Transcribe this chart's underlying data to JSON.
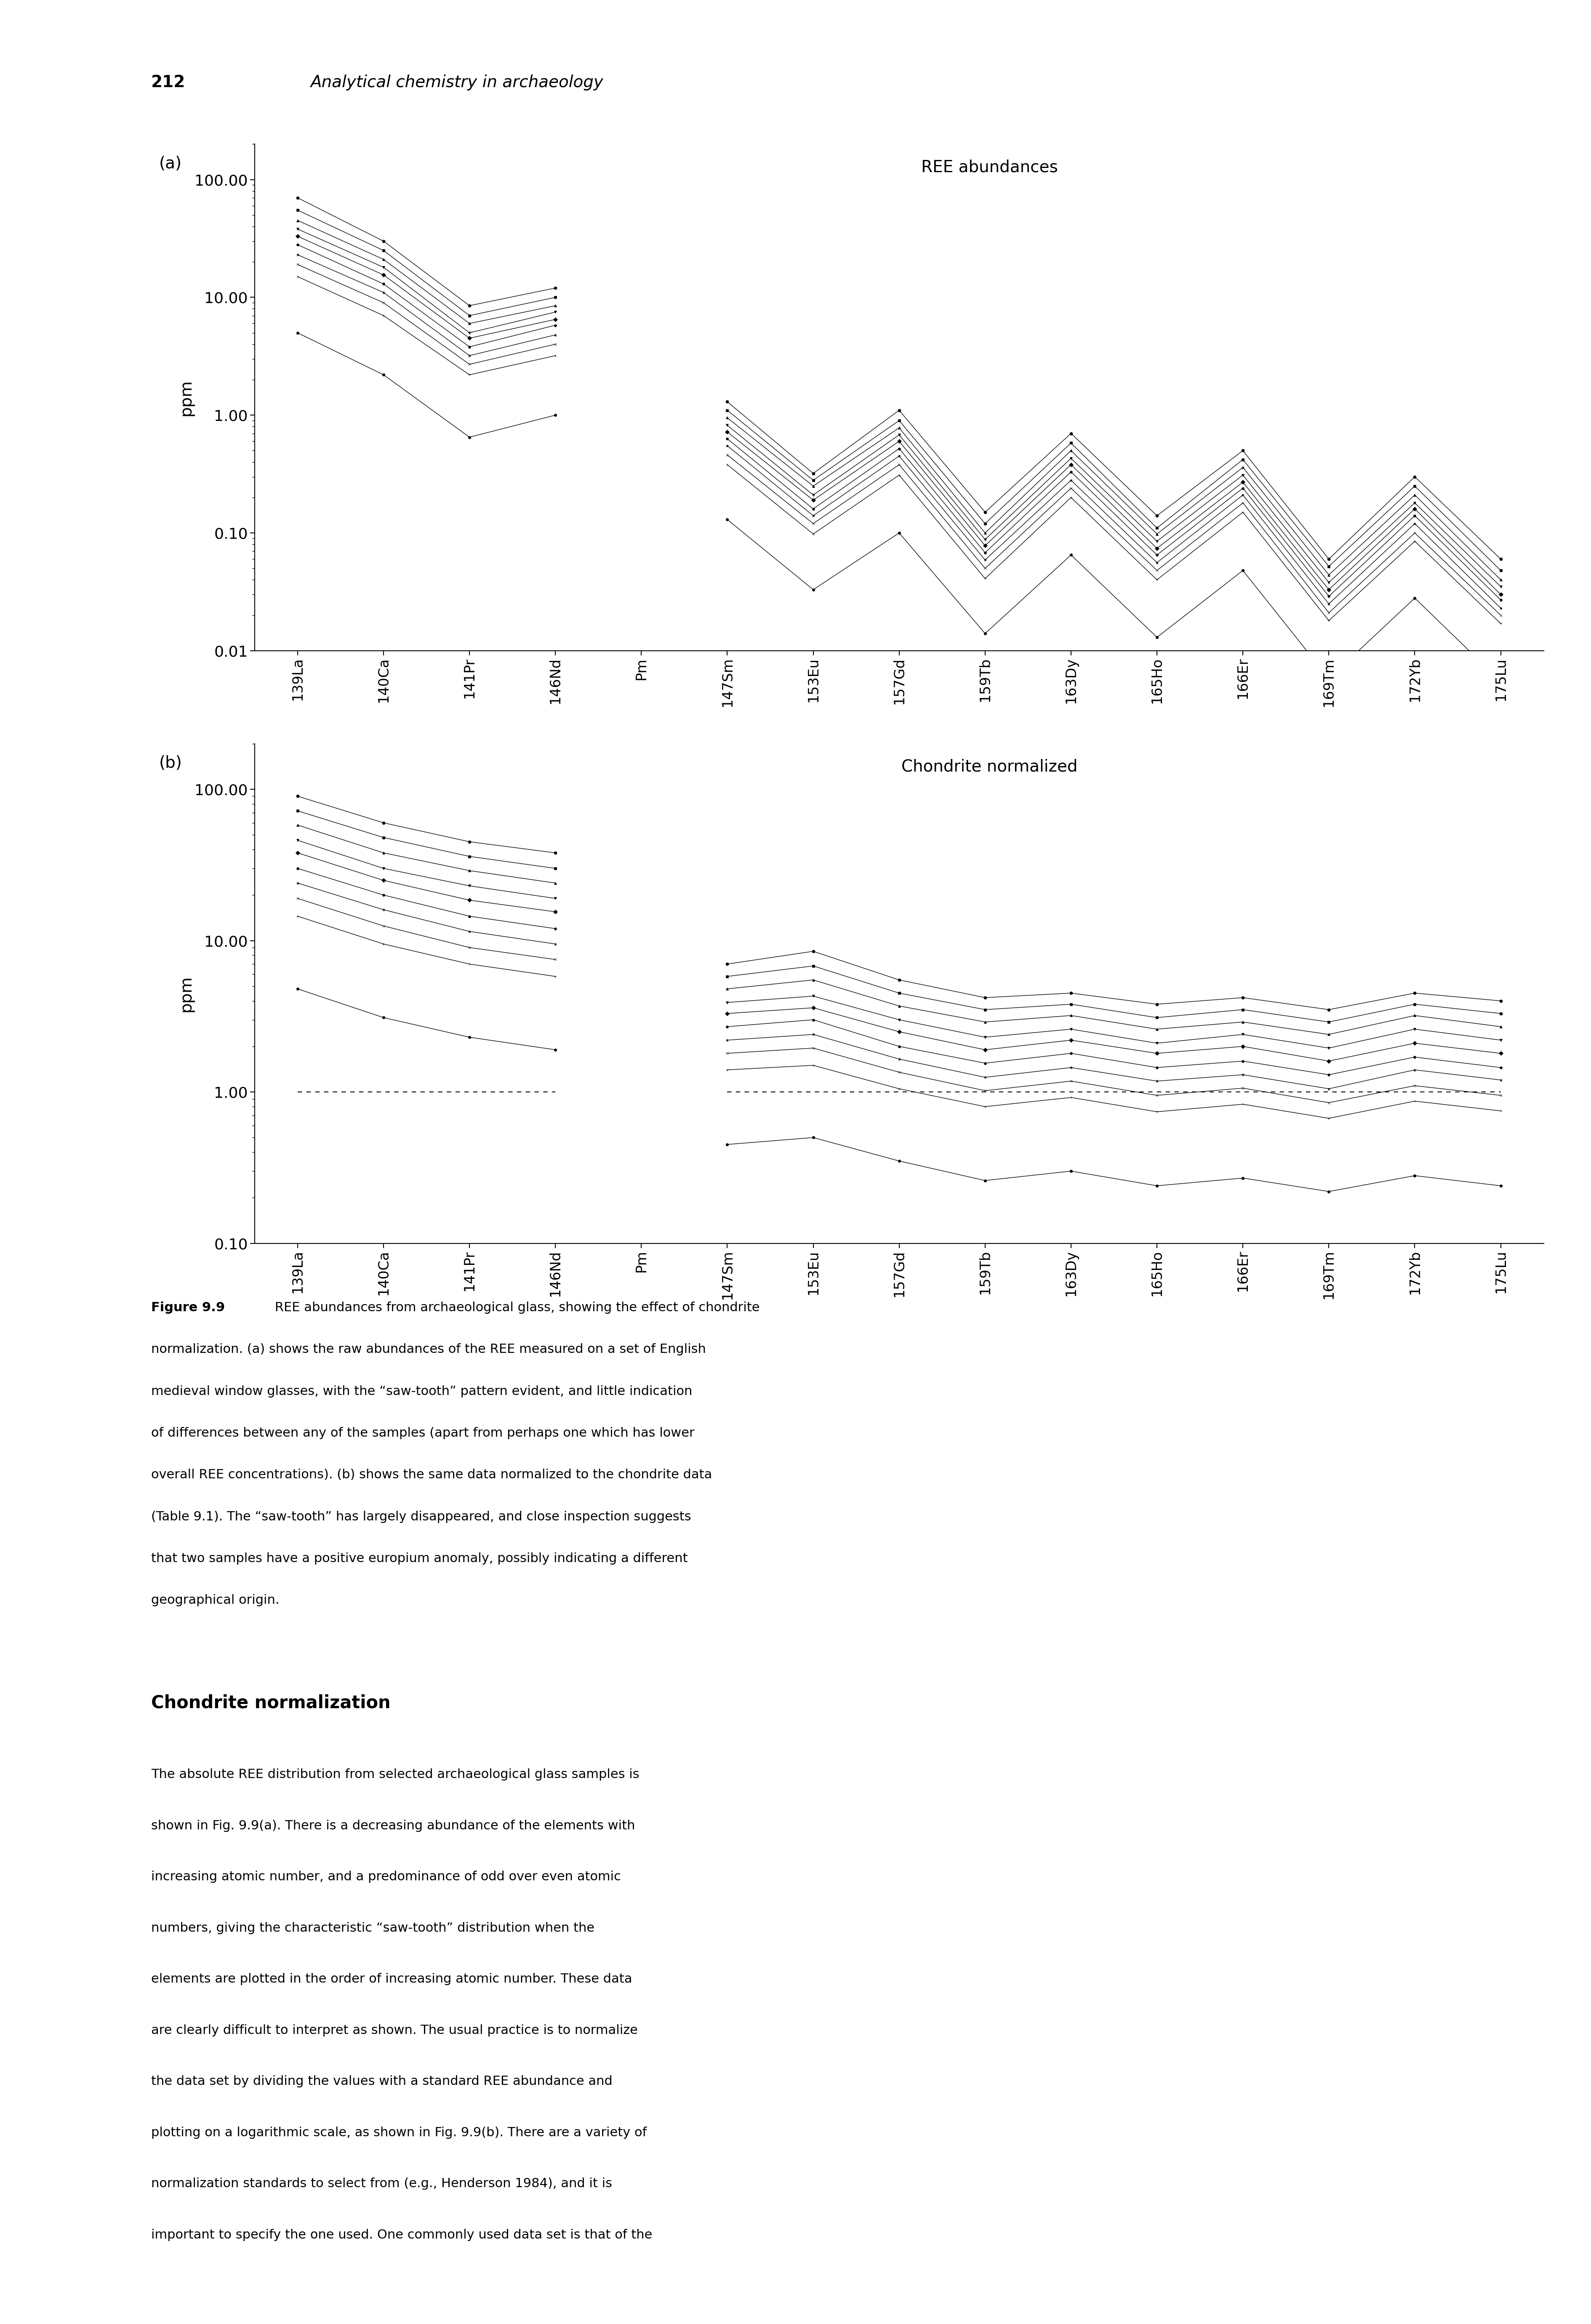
{
  "page_number": "212",
  "page_title": "Analytical chemistry in archaeology",
  "elements": [
    "La",
    "Ca",
    "Pr",
    "Nd",
    "Pm",
    "Sm",
    "Eu",
    "Gd",
    "Tb",
    "Dy",
    "Ho",
    "Er",
    "Tm",
    "Yb",
    "Lu"
  ],
  "mass_numbers": [
    "139",
    "140",
    "141",
    "146",
    "",
    "147",
    "153",
    "157",
    "159",
    "163",
    "165",
    "166",
    "169",
    "172",
    "175"
  ],
  "x_positions": [
    0,
    1,
    2,
    3,
    4,
    5,
    6,
    7,
    8,
    9,
    10,
    11,
    12,
    13,
    14
  ],
  "title_a": "REE abundances",
  "title_b": "Chondrite normalized",
  "ylabel": "ppm",
  "ylim_a": [
    0.01,
    200.0
  ],
  "ylim_b": [
    0.1,
    200.0
  ],
  "yticks_a": [
    0.01,
    0.1,
    1.0,
    10.0,
    100.0
  ],
  "yticks_b": [
    0.1,
    1.0,
    10.0,
    100.0
  ],
  "ytick_labels_a": [
    "0.01",
    "0.10",
    "1.00",
    "10.00",
    "100.00"
  ],
  "ytick_labels_b": [
    "0.10",
    "1.00",
    "10.00",
    "100.00"
  ],
  "background_color": "#ffffff",
  "line_color": "#000000",
  "dashed_line_y": 1.0,
  "samples_raw": [
    [
      70.0,
      30.0,
      8.5,
      12.0,
      null,
      1.3,
      0.32,
      1.1,
      0.15,
      0.7,
      0.14,
      0.5,
      0.06,
      0.3,
      0.06
    ],
    [
      55.0,
      25.0,
      7.0,
      10.0,
      null,
      1.1,
      0.28,
      0.9,
      0.12,
      0.58,
      0.11,
      0.42,
      0.052,
      0.25,
      0.048
    ],
    [
      45.0,
      21.0,
      6.0,
      8.5,
      null,
      0.95,
      0.25,
      0.78,
      0.1,
      0.5,
      0.098,
      0.36,
      0.044,
      0.21,
      0.04
    ],
    [
      38.0,
      18.0,
      5.0,
      7.5,
      null,
      0.82,
      0.21,
      0.68,
      0.088,
      0.43,
      0.085,
      0.31,
      0.038,
      0.18,
      0.035
    ],
    [
      33.0,
      15.5,
      4.5,
      6.5,
      null,
      0.72,
      0.19,
      0.6,
      0.078,
      0.38,
      0.074,
      0.27,
      0.033,
      0.16,
      0.03
    ],
    [
      28.0,
      13.0,
      3.8,
      5.8,
      null,
      0.63,
      0.16,
      0.52,
      0.068,
      0.33,
      0.065,
      0.24,
      0.029,
      0.14,
      0.027
    ],
    [
      23.0,
      11.0,
      3.2,
      4.8,
      null,
      0.55,
      0.14,
      0.45,
      0.059,
      0.28,
      0.056,
      0.21,
      0.025,
      0.12,
      0.023
    ],
    [
      19.0,
      9.0,
      2.7,
      4.0,
      null,
      0.46,
      0.12,
      0.38,
      0.05,
      0.24,
      0.048,
      0.18,
      0.021,
      0.1,
      0.02
    ],
    [
      15.0,
      7.0,
      2.2,
      3.2,
      null,
      0.38,
      0.098,
      0.31,
      0.041,
      0.2,
      0.04,
      0.15,
      0.018,
      0.085,
      0.017
    ],
    [
      5.0,
      2.2,
      0.65,
      1.0,
      null,
      0.13,
      0.033,
      0.1,
      0.014,
      0.065,
      0.013,
      0.048,
      0.0058,
      0.028,
      0.0055
    ]
  ],
  "samples_norm": [
    [
      90.0,
      60.0,
      45.0,
      38.0,
      null,
      7.0,
      8.5,
      5.5,
      4.2,
      4.5,
      3.8,
      4.2,
      3.5,
      4.5,
      4.0
    ],
    [
      72.0,
      48.0,
      36.0,
      30.0,
      null,
      5.8,
      6.8,
      4.5,
      3.5,
      3.8,
      3.1,
      3.5,
      2.9,
      3.8,
      3.3
    ],
    [
      58.0,
      38.0,
      29.0,
      24.0,
      null,
      4.8,
      5.5,
      3.7,
      2.9,
      3.2,
      2.6,
      2.9,
      2.4,
      3.2,
      2.7
    ],
    [
      46.0,
      30.0,
      23.0,
      19.0,
      null,
      3.9,
      4.3,
      3.0,
      2.3,
      2.6,
      2.1,
      2.4,
      1.95,
      2.6,
      2.2
    ],
    [
      38.0,
      25.0,
      18.5,
      15.5,
      null,
      3.3,
      3.6,
      2.5,
      1.9,
      2.2,
      1.8,
      2.0,
      1.6,
      2.1,
      1.8
    ],
    [
      30.0,
      20.0,
      14.5,
      12.0,
      null,
      2.7,
      3.0,
      2.0,
      1.55,
      1.8,
      1.45,
      1.6,
      1.3,
      1.7,
      1.45
    ],
    [
      24.0,
      16.0,
      11.5,
      9.5,
      null,
      2.2,
      2.4,
      1.65,
      1.25,
      1.45,
      1.18,
      1.3,
      1.05,
      1.4,
      1.2
    ],
    [
      19.0,
      12.5,
      9.0,
      7.5,
      null,
      1.8,
      1.95,
      1.35,
      1.02,
      1.18,
      0.95,
      1.06,
      0.85,
      1.1,
      0.95
    ],
    [
      14.5,
      9.5,
      7.0,
      5.8,
      null,
      1.4,
      1.5,
      1.05,
      0.8,
      0.92,
      0.74,
      0.83,
      0.67,
      0.87,
      0.75
    ],
    [
      4.8,
      3.1,
      2.3,
      1.9,
      null,
      0.45,
      0.5,
      0.35,
      0.26,
      0.3,
      0.24,
      0.27,
      0.22,
      0.28,
      0.24
    ]
  ],
  "caption_bold": "Figure 9.9",
  "caption_text": " REE abundances from archaeological glass, showing the effect of chondrite normalization. (a) shows the raw abundances of the REE measured on a set of English medieval window glasses, with the “saw-tooth” pattern evident, and little indication of differences between any of the samples (apart from perhaps one which has lower overall REE concentrations). (b) shows the same data normalized to the chondrite data (Table 9.1). The “saw-tooth” has largely disappeared, and close inspection suggests that two samples have a positive europium anomaly, possibly indicating a different geographical origin.",
  "section_title": "Chondrite normalization",
  "body_text_lines": [
    "The absolute REE distribution from selected archaeological glass samples is",
    "shown in Fig. 9.9(a). There is a decreasing abundance of the elements with",
    "increasing atomic number, and a predominance of odd over even atomic",
    "numbers, giving the characteristic “saw-tooth” distribution when the",
    "elements are plotted in the order of increasing atomic number. These data",
    "are clearly difficult to interpret as shown. The usual practice is to normalize",
    "the data set by dividing the values with a standard REE abundance and",
    "plotting on a logarithmic scale, as shown in Fig. 9.9(b). There are a variety of",
    "normalization standards to select from (e.g., Henderson 1984), and it is",
    "important to specify the one used. One commonly used data set is that of the"
  ]
}
